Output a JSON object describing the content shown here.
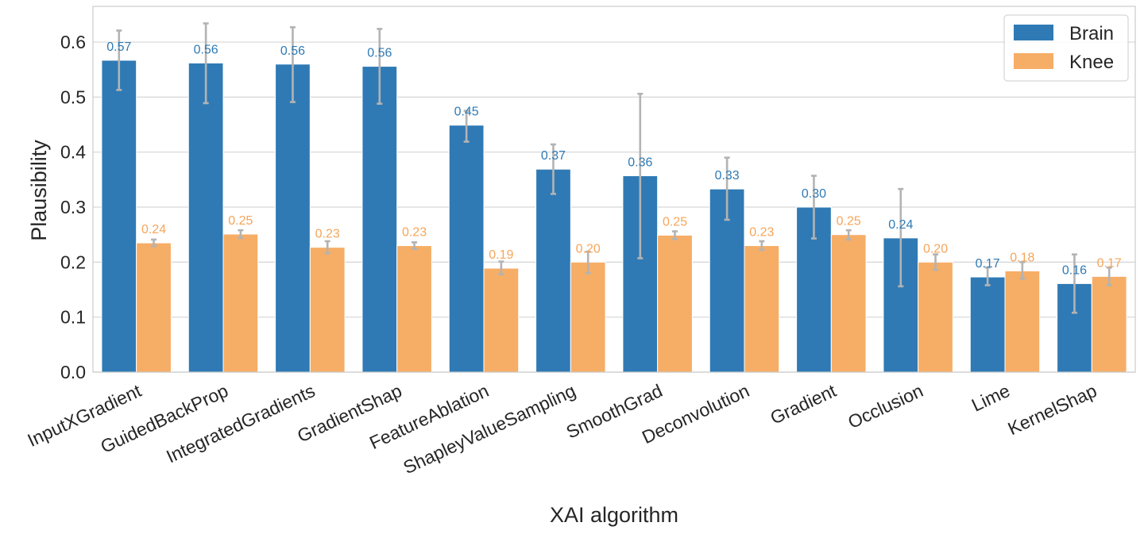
{
  "chart_data": {
    "type": "bar",
    "title": "",
    "xlabel": "XAI algorithm",
    "ylabel": "Plausibility",
    "ylim": [
      0,
      0.665
    ],
    "yticks": [
      0.0,
      0.1,
      0.2,
      0.3,
      0.4,
      0.5,
      0.6
    ],
    "ytick_labels": [
      "0.0",
      "0.1",
      "0.2",
      "0.3",
      "0.4",
      "0.5",
      "0.6"
    ],
    "grid": true,
    "legend_position": "top-right",
    "categories": [
      "InputXGradient",
      "GuidedBackProp",
      "IntegratedGradients",
      "GradientShap",
      "FeatureAblation",
      "ShapleyValueSampling",
      "SmoothGrad",
      "Deconvolution",
      "Gradient",
      "Occlusion",
      "Lime",
      "KernelShap"
    ],
    "series": [
      {
        "name": "Brain",
        "color": "#2f7ab5",
        "label_color": "#2f7ab5",
        "values": [
          0.567,
          0.562,
          0.56,
          0.556,
          0.449,
          0.369,
          0.357,
          0.333,
          0.3,
          0.244,
          0.173,
          0.161
        ],
        "labels": [
          "0.57",
          "0.56",
          "0.56",
          "0.56",
          "0.45",
          "0.37",
          "0.36",
          "0.33",
          "0.30",
          "0.24",
          "0.17",
          "0.16"
        ],
        "err_low": [
          0.513,
          0.489,
          0.491,
          0.488,
          0.419,
          0.324,
          0.207,
          0.277,
          0.243,
          0.156,
          0.158,
          0.108
        ],
        "err_high": [
          0.621,
          0.634,
          0.627,
          0.624,
          0.475,
          0.414,
          0.506,
          0.39,
          0.357,
          0.333,
          0.19,
          0.214
        ]
      },
      {
        "name": "Knee",
        "color": "#f6ad66",
        "label_color": "#f6a55a",
        "values": [
          0.235,
          0.251,
          0.227,
          0.23,
          0.189,
          0.2,
          0.249,
          0.23,
          0.25,
          0.2,
          0.184,
          0.174
        ],
        "labels": [
          "0.24",
          "0.25",
          "0.23",
          "0.23",
          "0.19",
          "0.20",
          "0.25",
          "0.23",
          "0.25",
          "0.20",
          "0.18",
          "0.17"
        ],
        "err_low": [
          0.229,
          0.244,
          0.216,
          0.224,
          0.178,
          0.18,
          0.242,
          0.222,
          0.241,
          0.186,
          0.17,
          0.158
        ],
        "err_high": [
          0.241,
          0.258,
          0.238,
          0.236,
          0.201,
          0.219,
          0.256,
          0.238,
          0.258,
          0.214,
          0.2,
          0.19
        ]
      }
    ]
  }
}
